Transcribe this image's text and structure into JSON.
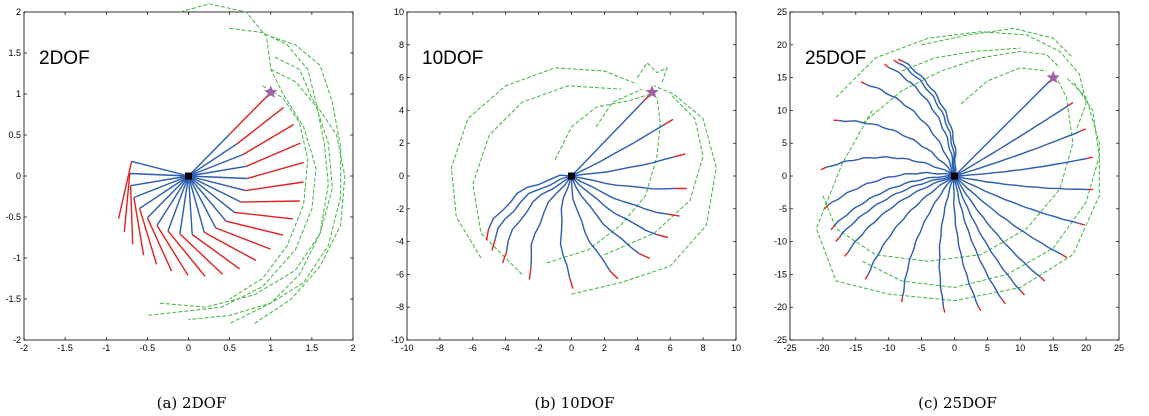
{
  "chart_data": [
    {
      "type": "line",
      "title": "2DOF",
      "caption": "(a) 2DOF",
      "xlim": [
        -2,
        2
      ],
      "ylim": [
        -2,
        2
      ],
      "xticks": [
        -2,
        -1.5,
        -1,
        -0.5,
        0,
        0.5,
        1,
        1.5,
        2
      ],
      "yticks": [
        -2,
        -1.5,
        -1,
        -0.5,
        0,
        0.5,
        1,
        1.5,
        2
      ],
      "xticklabels": [
        "-2",
        "-1.5",
        "-1",
        "-0.5",
        "0",
        "0.5",
        "1",
        "1.5",
        "2"
      ],
      "yticklabels": [
        "-2",
        "-1.5",
        "-1",
        "-0.5",
        "0",
        "0.5",
        "1",
        "1.5",
        "2"
      ],
      "base": [
        0,
        0
      ],
      "target": [
        1,
        1.02
      ],
      "links": 2,
      "sweep_deg": 240,
      "arm_count": 21,
      "tip_fraction": 0.5,
      "colors": {
        "arm": "#2a5cb0",
        "tip": "#e0201e",
        "trail": "#3cb43c",
        "target": "#a060a8",
        "base": "#000000"
      },
      "trails": [
        [
          [
            -0.1,
            2.0
          ],
          [
            0.25,
            2.1
          ],
          [
            0.7,
            2.0
          ],
          [
            0.95,
            1.7
          ],
          [
            1.0,
            1.3
          ],
          [
            1.15,
            1.0
          ],
          [
            1.4,
            0.6
          ],
          [
            1.55,
            0.1
          ],
          [
            1.5,
            -0.4
          ],
          [
            1.3,
            -0.9
          ],
          [
            0.9,
            -1.35
          ],
          [
            0.4,
            -1.6
          ],
          [
            -0.5,
            -1.7
          ]
        ],
        [
          [
            0.5,
            1.8
          ],
          [
            0.9,
            1.75
          ],
          [
            1.2,
            1.6
          ],
          [
            1.45,
            1.3
          ],
          [
            1.55,
            0.9
          ],
          [
            1.65,
            0.4
          ],
          [
            1.7,
            -0.1
          ],
          [
            1.6,
            -0.7
          ],
          [
            1.3,
            -1.15
          ],
          [
            0.8,
            -1.45
          ],
          [
            0.2,
            -1.6
          ],
          [
            -0.35,
            -1.55
          ]
        ],
        [
          [
            1.0,
            1.7
          ],
          [
            1.3,
            1.6
          ],
          [
            1.6,
            1.35
          ],
          [
            1.75,
            0.9
          ],
          [
            1.85,
            0.35
          ],
          [
            1.85,
            -0.25
          ],
          [
            1.7,
            -0.85
          ],
          [
            1.4,
            -1.3
          ],
          [
            1.0,
            -1.55
          ],
          [
            0.5,
            -1.7
          ],
          [
            0.0,
            -1.75
          ]
        ],
        [
          [
            1.05,
            1.45
          ],
          [
            1.35,
            1.3
          ],
          [
            1.5,
            0.95
          ],
          [
            1.8,
            0.5
          ],
          [
            1.9,
            0.0
          ],
          [
            1.85,
            -0.6
          ],
          [
            1.6,
            -1.1
          ],
          [
            1.25,
            -1.5
          ],
          [
            0.8,
            -1.8
          ]
        ],
        [
          [
            1.0,
            1.3
          ],
          [
            1.3,
            1.15
          ],
          [
            1.55,
            0.85
          ],
          [
            1.7,
            0.4
          ],
          [
            1.75,
            -0.15
          ],
          [
            1.6,
            -0.7
          ],
          [
            1.35,
            -1.2
          ],
          [
            1.0,
            -1.55
          ],
          [
            0.5,
            -1.8
          ]
        ],
        [
          [
            0.9,
            1.1
          ],
          [
            1.15,
            0.95
          ],
          [
            1.35,
            0.65
          ],
          [
            1.45,
            0.2
          ],
          [
            1.4,
            -0.35
          ],
          [
            1.2,
            -0.85
          ],
          [
            0.9,
            -1.25
          ],
          [
            0.5,
            -1.5
          ]
        ]
      ]
    },
    {
      "type": "line",
      "title": "10DOF",
      "caption": "(b) 10DOF",
      "xlim": [
        -10,
        10
      ],
      "ylim": [
        -10,
        10
      ],
      "xticks": [
        -10,
        -8,
        -6,
        -4,
        -2,
        0,
        2,
        4,
        6,
        8,
        10
      ],
      "yticks": [
        -10,
        -8,
        -6,
        -4,
        -2,
        0,
        2,
        4,
        6,
        8,
        10
      ],
      "xticklabels": [
        "-10",
        "-8",
        "-6",
        "-4",
        "-2",
        "0",
        "2",
        "4",
        "6",
        "8",
        "10"
      ],
      "yticklabels": [
        "-10",
        "-8",
        "-6",
        "-4",
        "-2",
        "0",
        "2",
        "4",
        "6",
        "8",
        "10"
      ],
      "base": [
        0,
        0
      ],
      "target": [
        4.9,
        5.1
      ],
      "links": 10,
      "sweep_deg": 230,
      "arm_count": 13,
      "tip_fraction": 0.1,
      "colors": {
        "arm": "#2a5cb0",
        "tip": "#e0201e",
        "trail": "#3cb43c",
        "target": "#a060a8",
        "base": "#000000"
      },
      "trails": [
        [
          [
            -5.5,
            -5.0
          ],
          [
            -7.0,
            -2.5
          ],
          [
            -7.3,
            0.5
          ],
          [
            -6.3,
            3.5
          ],
          [
            -4.0,
            5.5
          ],
          [
            -1.0,
            6.6
          ],
          [
            2.0,
            6.4
          ],
          [
            4.0,
            5.6
          ]
        ],
        [
          [
            -3.0,
            -6.0
          ],
          [
            -5.5,
            -3.5
          ],
          [
            -6.0,
            -0.5
          ],
          [
            -5.0,
            2.5
          ],
          [
            -3.0,
            4.5
          ],
          [
            -0.2,
            5.5
          ],
          [
            3.0,
            5.3
          ]
        ],
        [
          [
            0.0,
            -7.2
          ],
          [
            3.0,
            -6.5
          ],
          [
            6.0,
            -5.5
          ],
          [
            8.2,
            -3.0
          ],
          [
            8.8,
            0.5
          ],
          [
            8.0,
            3.5
          ],
          [
            6.2,
            5.0
          ],
          [
            5.0,
            5.5
          ]
        ],
        [
          [
            -1.5,
            -5.3
          ],
          [
            1.0,
            -4.5
          ],
          [
            3.0,
            -3.0
          ],
          [
            4.5,
            -1.2
          ],
          [
            5.2,
            1.2
          ],
          [
            5.4,
            3.2
          ],
          [
            5.2,
            4.8
          ]
        ],
        [
          [
            2.0,
            -4.8
          ],
          [
            5.0,
            -3.5
          ],
          [
            7.2,
            -1.5
          ],
          [
            8.0,
            1.2
          ],
          [
            7.5,
            3.5
          ],
          [
            6.0,
            5.0
          ]
        ],
        [
          [
            4.0,
            6.0
          ],
          [
            4.6,
            6.9
          ],
          [
            5.2,
            6.3
          ],
          [
            5.8,
            6.6
          ],
          [
            5.5,
            5.7
          ]
        ],
        [
          [
            1.5,
            3.0
          ],
          [
            2.5,
            4.5
          ],
          [
            4.3,
            5.3
          ]
        ],
        [
          [
            -1.0,
            1.0
          ],
          [
            0.0,
            3.0
          ],
          [
            1.5,
            4.2
          ],
          [
            3.5,
            4.6
          ],
          [
            4.8,
            5.0
          ]
        ]
      ]
    },
    {
      "type": "line",
      "title": "25DOF",
      "caption": "(c) 25DOF",
      "xlim": [
        -25,
        25
      ],
      "ylim": [
        -25,
        25
      ],
      "xticks": [
        -25,
        -20,
        -15,
        -10,
        -5,
        0,
        5,
        10,
        15,
        20,
        25
      ],
      "yticks": [
        -25,
        -20,
        -15,
        -10,
        -5,
        0,
        5,
        10,
        15,
        20,
        25
      ],
      "xticklabels": [
        "-25",
        "-20",
        "-15",
        "-10",
        "-5",
        "0",
        "5",
        "10",
        "15",
        "20",
        "25"
      ],
      "yticklabels": [
        "-25",
        "-20",
        "-15",
        "-10",
        "-5",
        "0",
        "5",
        "10",
        "15",
        "20",
        "25"
      ],
      "base": [
        0,
        0
      ],
      "target": [
        15,
        15
      ],
      "links": 25,
      "sweep_deg": 330,
      "arm_count": 24,
      "tip_fraction": 0.04,
      "colors": {
        "arm": "#2a5cb0",
        "tip": "#e0201e",
        "trail": "#3cb43c",
        "target": "#a060a8",
        "base": "#000000"
      },
      "trails": [
        [
          [
            -12.5,
            10.0
          ],
          [
            -17.0,
            2.0
          ],
          [
            -21.0,
            -8.0
          ],
          [
            -18.0,
            -16.0
          ],
          [
            -10.0,
            -18.0
          ],
          [
            0.0,
            -19.0
          ],
          [
            10.0,
            -17.0
          ],
          [
            18.0,
            -12.0
          ],
          [
            22.0,
            -3.0
          ],
          [
            22.0,
            5.0
          ],
          [
            20.0,
            12.0
          ],
          [
            17.0,
            15.0
          ]
        ],
        [
          [
            -14.0,
            -13.0
          ],
          [
            -8.0,
            -16.0
          ],
          [
            0.0,
            -17.0
          ],
          [
            8.0,
            -15.0
          ],
          [
            15.0,
            -11.0
          ],
          [
            20.0,
            -4.0
          ],
          [
            22.0,
            3.0
          ],
          [
            21.0,
            10.0
          ],
          [
            18.0,
            14.5
          ]
        ],
        [
          [
            -20.0,
            -3.0
          ],
          [
            -18.0,
            -8.0
          ],
          [
            -12.0,
            -12.0
          ],
          [
            -4.0,
            -13.0
          ],
          [
            4.0,
            -12.0
          ],
          [
            11.0,
            -8.0
          ],
          [
            16.0,
            -2.0
          ],
          [
            18.0,
            5.0
          ],
          [
            17.0,
            12.0
          ],
          [
            15.5,
            15.0
          ]
        ],
        [
          [
            -14.0,
            8.0
          ],
          [
            -8.0,
            13.0
          ],
          [
            -2.0,
            16.0
          ],
          [
            4.0,
            18.0
          ],
          [
            10.0,
            19.0
          ],
          [
            14.0,
            18.5
          ],
          [
            16.0,
            16.5
          ]
        ],
        [
          [
            -18.0,
            12.0
          ],
          [
            -12.0,
            18.0
          ],
          [
            -4.0,
            21.0
          ],
          [
            4.0,
            22.0
          ],
          [
            11.0,
            21.5
          ],
          [
            16.0,
            19.0
          ],
          [
            19.0,
            15.5
          ],
          [
            20.0,
            11.0
          ],
          [
            18.5,
            7.0
          ]
        ],
        [
          [
            -5.0,
            20.0
          ],
          [
            2.0,
            21.5
          ],
          [
            9.0,
            22.5
          ],
          [
            15.0,
            21.0
          ],
          [
            18.0,
            18.0
          ]
        ],
        [
          [
            1.0,
            11.0
          ],
          [
            5.0,
            14.5
          ],
          [
            10.0,
            16.5
          ],
          [
            14.0,
            16.0
          ]
        ],
        [
          [
            -8.0,
            16.0
          ],
          [
            -3.0,
            18.0
          ],
          [
            3.0,
            19.0
          ],
          [
            10.0,
            19.5
          ]
        ]
      ]
    }
  ]
}
